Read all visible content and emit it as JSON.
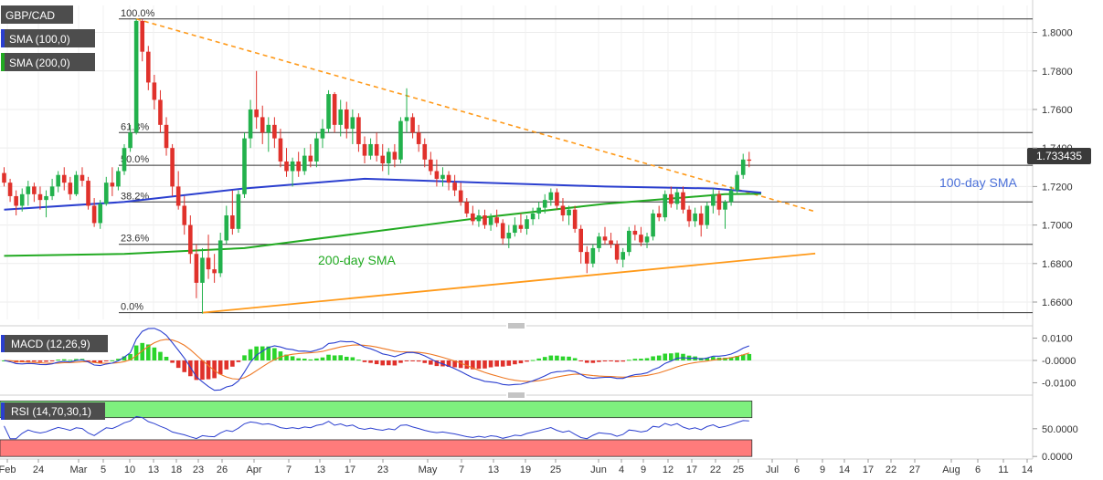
{
  "chart_data": {
    "type": "candlestick",
    "symbol": "GBP/CAD",
    "price_badge": "1.733435",
    "legend": [
      {
        "label": "GBP/CAD",
        "color": "#4d4d4d"
      },
      {
        "label": "SMA (100,0)",
        "color": "#2b3fcf"
      },
      {
        "label": "SMA (200,0)",
        "color": "#22aa22"
      }
    ],
    "price_axis": {
      "ticks": [
        "1.8000",
        "1.7800",
        "1.7600",
        "1.7400",
        "1.7200",
        "1.7000",
        "1.6800",
        "1.6600"
      ],
      "tick_values": [
        1.8,
        1.78,
        1.76,
        1.74,
        1.72,
        1.7,
        1.68,
        1.66
      ],
      "range": [
        1.651,
        1.814
      ]
    },
    "fibonacci": [
      {
        "label": "100.0%",
        "value": 1.807
      },
      {
        "label": "61.8%",
        "value": 1.748
      },
      {
        "label": "50.0%",
        "value": 1.731
      },
      {
        "label": "38.2%",
        "value": 1.712
      },
      {
        "label": "23.6%",
        "value": 1.69
      },
      {
        "label": "0.0%",
        "value": 1.6545
      }
    ],
    "annotations": [
      {
        "label": "100-day SMA",
        "color": "#4a6fd8"
      },
      {
        "label": "200-day SMA",
        "color": "#22aa22"
      }
    ],
    "x_axis": {
      "labels": [
        "Feb",
        "24",
        "Mar",
        "5",
        "10",
        "13",
        "18",
        "23",
        "26",
        "Apr",
        "7",
        "13",
        "17",
        "23",
        "May",
        "7",
        "13",
        "19",
        "25",
        "Jun",
        "4",
        "9",
        "12",
        "17",
        "22",
        "25",
        "Jul",
        "6",
        "9",
        "14",
        "17",
        "22",
        "27",
        "Aug",
        "6",
        "11",
        "14"
      ]
    },
    "candles": [
      {
        "o": 1.727,
        "h": 1.73,
        "l": 1.72,
        "c": 1.722
      },
      {
        "o": 1.722,
        "h": 1.724,
        "l": 1.712,
        "c": 1.715
      },
      {
        "o": 1.715,
        "h": 1.718,
        "l": 1.705,
        "c": 1.71
      },
      {
        "o": 1.71,
        "h": 1.719,
        "l": 1.707,
        "c": 1.716
      },
      {
        "o": 1.716,
        "h": 1.723,
        "l": 1.71,
        "c": 1.72
      },
      {
        "o": 1.72,
        "h": 1.722,
        "l": 1.712,
        "c": 1.716
      },
      {
        "o": 1.716,
        "h": 1.72,
        "l": 1.708,
        "c": 1.713
      },
      {
        "o": 1.713,
        "h": 1.718,
        "l": 1.704,
        "c": 1.715
      },
      {
        "o": 1.715,
        "h": 1.724,
        "l": 1.713,
        "c": 1.72
      },
      {
        "o": 1.72,
        "h": 1.728,
        "l": 1.717,
        "c": 1.726
      },
      {
        "o": 1.726,
        "h": 1.73,
        "l": 1.718,
        "c": 1.722
      },
      {
        "o": 1.722,
        "h": 1.725,
        "l": 1.713,
        "c": 1.716
      },
      {
        "o": 1.716,
        "h": 1.728,
        "l": 1.715,
        "c": 1.726
      },
      {
        "o": 1.726,
        "h": 1.73,
        "l": 1.72,
        "c": 1.723
      },
      {
        "o": 1.723,
        "h": 1.725,
        "l": 1.708,
        "c": 1.71
      },
      {
        "o": 1.71,
        "h": 1.714,
        "l": 1.699,
        "c": 1.701
      },
      {
        "o": 1.701,
        "h": 1.713,
        "l": 1.698,
        "c": 1.711
      },
      {
        "o": 1.711,
        "h": 1.725,
        "l": 1.71,
        "c": 1.722
      },
      {
        "o": 1.722,
        "h": 1.73,
        "l": 1.715,
        "c": 1.72
      },
      {
        "o": 1.72,
        "h": 1.73,
        "l": 1.718,
        "c": 1.728
      },
      {
        "o": 1.728,
        "h": 1.742,
        "l": 1.726,
        "c": 1.74
      },
      {
        "o": 1.74,
        "h": 1.752,
        "l": 1.738,
        "c": 1.748
      },
      {
        "o": 1.748,
        "h": 1.807,
        "l": 1.747,
        "c": 1.806
      },
      {
        "o": 1.806,
        "h": 1.807,
        "l": 1.785,
        "c": 1.79
      },
      {
        "o": 1.79,
        "h": 1.793,
        "l": 1.77,
        "c": 1.774
      },
      {
        "o": 1.774,
        "h": 1.778,
        "l": 1.76,
        "c": 1.765
      },
      {
        "o": 1.765,
        "h": 1.77,
        "l": 1.748,
        "c": 1.752
      },
      {
        "o": 1.752,
        "h": 1.756,
        "l": 1.736,
        "c": 1.74
      },
      {
        "o": 1.74,
        "h": 1.742,
        "l": 1.715,
        "c": 1.72
      },
      {
        "o": 1.72,
        "h": 1.728,
        "l": 1.708,
        "c": 1.71
      },
      {
        "o": 1.71,
        "h": 1.715,
        "l": 1.695,
        "c": 1.7
      },
      {
        "o": 1.7,
        "h": 1.705,
        "l": 1.68,
        "c": 1.685
      },
      {
        "o": 1.685,
        "h": 1.69,
        "l": 1.662,
        "c": 1.67
      },
      {
        "o": 1.67,
        "h": 1.688,
        "l": 1.654,
        "c": 1.683
      },
      {
        "o": 1.683,
        "h": 1.695,
        "l": 1.672,
        "c": 1.677
      },
      {
        "o": 1.677,
        "h": 1.685,
        "l": 1.67,
        "c": 1.675
      },
      {
        "o": 1.675,
        "h": 1.696,
        "l": 1.673,
        "c": 1.692
      },
      {
        "o": 1.692,
        "h": 1.71,
        "l": 1.69,
        "c": 1.705
      },
      {
        "o": 1.705,
        "h": 1.718,
        "l": 1.695,
        "c": 1.698
      },
      {
        "o": 1.698,
        "h": 1.718,
        "l": 1.696,
        "c": 1.716
      },
      {
        "o": 1.716,
        "h": 1.748,
        "l": 1.714,
        "c": 1.745
      },
      {
        "o": 1.745,
        "h": 1.765,
        "l": 1.74,
        "c": 1.76
      },
      {
        "o": 1.76,
        "h": 1.78,
        "l": 1.75,
        "c": 1.756
      },
      {
        "o": 1.756,
        "h": 1.762,
        "l": 1.742,
        "c": 1.748
      },
      {
        "o": 1.748,
        "h": 1.756,
        "l": 1.738,
        "c": 1.752
      },
      {
        "o": 1.752,
        "h": 1.756,
        "l": 1.74,
        "c": 1.745
      },
      {
        "o": 1.745,
        "h": 1.75,
        "l": 1.73,
        "c": 1.733
      },
      {
        "o": 1.733,
        "h": 1.74,
        "l": 1.725,
        "c": 1.728
      },
      {
        "o": 1.728,
        "h": 1.735,
        "l": 1.72,
        "c": 1.733
      },
      {
        "o": 1.733,
        "h": 1.738,
        "l": 1.725,
        "c": 1.728
      },
      {
        "o": 1.728,
        "h": 1.74,
        "l": 1.726,
        "c": 1.736
      },
      {
        "o": 1.736,
        "h": 1.742,
        "l": 1.73,
        "c": 1.733
      },
      {
        "o": 1.733,
        "h": 1.748,
        "l": 1.73,
        "c": 1.745
      },
      {
        "o": 1.745,
        "h": 1.755,
        "l": 1.74,
        "c": 1.75
      },
      {
        "o": 1.75,
        "h": 1.77,
        "l": 1.748,
        "c": 1.768
      },
      {
        "o": 1.768,
        "h": 1.769,
        "l": 1.748,
        "c": 1.752
      },
      {
        "o": 1.752,
        "h": 1.765,
        "l": 1.746,
        "c": 1.76
      },
      {
        "o": 1.76,
        "h": 1.764,
        "l": 1.745,
        "c": 1.75
      },
      {
        "o": 1.75,
        "h": 1.76,
        "l": 1.742,
        "c": 1.756
      },
      {
        "o": 1.756,
        "h": 1.758,
        "l": 1.738,
        "c": 1.742
      },
      {
        "o": 1.742,
        "h": 1.746,
        "l": 1.732,
        "c": 1.736
      },
      {
        "o": 1.736,
        "h": 1.745,
        "l": 1.734,
        "c": 1.742
      },
      {
        "o": 1.742,
        "h": 1.748,
        "l": 1.733,
        "c": 1.736
      },
      {
        "o": 1.736,
        "h": 1.742,
        "l": 1.728,
        "c": 1.732
      },
      {
        "o": 1.732,
        "h": 1.74,
        "l": 1.726,
        "c": 1.738
      },
      {
        "o": 1.738,
        "h": 1.742,
        "l": 1.73,
        "c": 1.734
      },
      {
        "o": 1.734,
        "h": 1.756,
        "l": 1.732,
        "c": 1.754
      },
      {
        "o": 1.754,
        "h": 1.771,
        "l": 1.748,
        "c": 1.756
      },
      {
        "o": 1.756,
        "h": 1.758,
        "l": 1.745,
        "c": 1.748
      },
      {
        "o": 1.748,
        "h": 1.752,
        "l": 1.738,
        "c": 1.742
      },
      {
        "o": 1.742,
        "h": 1.745,
        "l": 1.73,
        "c": 1.734
      },
      {
        "o": 1.734,
        "h": 1.738,
        "l": 1.726,
        "c": 1.728
      },
      {
        "o": 1.728,
        "h": 1.734,
        "l": 1.72,
        "c": 1.724
      },
      {
        "o": 1.724,
        "h": 1.73,
        "l": 1.72,
        "c": 1.726
      },
      {
        "o": 1.726,
        "h": 1.728,
        "l": 1.718,
        "c": 1.722
      },
      {
        "o": 1.722,
        "h": 1.726,
        "l": 1.715,
        "c": 1.718
      },
      {
        "o": 1.718,
        "h": 1.722,
        "l": 1.71,
        "c": 1.712
      },
      {
        "o": 1.712,
        "h": 1.714,
        "l": 1.704,
        "c": 1.706
      },
      {
        "o": 1.706,
        "h": 1.71,
        "l": 1.7,
        "c": 1.702
      },
      {
        "o": 1.702,
        "h": 1.708,
        "l": 1.699,
        "c": 1.705
      },
      {
        "o": 1.705,
        "h": 1.708,
        "l": 1.698,
        "c": 1.7
      },
      {
        "o": 1.7,
        "h": 1.706,
        "l": 1.697,
        "c": 1.704
      },
      {
        "o": 1.704,
        "h": 1.708,
        "l": 1.699,
        "c": 1.701
      },
      {
        "o": 1.701,
        "h": 1.703,
        "l": 1.69,
        "c": 1.693
      },
      {
        "o": 1.693,
        "h": 1.7,
        "l": 1.688,
        "c": 1.696
      },
      {
        "o": 1.696,
        "h": 1.704,
        "l": 1.694,
        "c": 1.7
      },
      {
        "o": 1.7,
        "h": 1.706,
        "l": 1.696,
        "c": 1.698
      },
      {
        "o": 1.698,
        "h": 1.705,
        "l": 1.695,
        "c": 1.703
      },
      {
        "o": 1.703,
        "h": 1.709,
        "l": 1.7,
        "c": 1.706
      },
      {
        "o": 1.706,
        "h": 1.712,
        "l": 1.703,
        "c": 1.709
      },
      {
        "o": 1.709,
        "h": 1.716,
        "l": 1.706,
        "c": 1.713
      },
      {
        "o": 1.713,
        "h": 1.719,
        "l": 1.71,
        "c": 1.717
      },
      {
        "o": 1.717,
        "h": 1.719,
        "l": 1.708,
        "c": 1.71
      },
      {
        "o": 1.71,
        "h": 1.714,
        "l": 1.702,
        "c": 1.705
      },
      {
        "o": 1.705,
        "h": 1.71,
        "l": 1.7,
        "c": 1.708
      },
      {
        "o": 1.708,
        "h": 1.71,
        "l": 1.696,
        "c": 1.698
      },
      {
        "o": 1.698,
        "h": 1.7,
        "l": 1.68,
        "c": 1.686
      },
      {
        "o": 1.686,
        "h": 1.689,
        "l": 1.675,
        "c": 1.68
      },
      {
        "o": 1.68,
        "h": 1.69,
        "l": 1.678,
        "c": 1.688
      },
      {
        "o": 1.688,
        "h": 1.696,
        "l": 1.686,
        "c": 1.694
      },
      {
        "o": 1.694,
        "h": 1.699,
        "l": 1.69,
        "c": 1.692
      },
      {
        "o": 1.692,
        "h": 1.696,
        "l": 1.688,
        "c": 1.69
      },
      {
        "o": 1.69,
        "h": 1.692,
        "l": 1.68,
        "c": 1.682
      },
      {
        "o": 1.682,
        "h": 1.688,
        "l": 1.678,
        "c": 1.686
      },
      {
        "o": 1.686,
        "h": 1.699,
        "l": 1.684,
        "c": 1.697
      },
      {
        "o": 1.697,
        "h": 1.7,
        "l": 1.692,
        "c": 1.695
      },
      {
        "o": 1.695,
        "h": 1.699,
        "l": 1.689,
        "c": 1.691
      },
      {
        "o": 1.691,
        "h": 1.696,
        "l": 1.688,
        "c": 1.694
      },
      {
        "o": 1.694,
        "h": 1.708,
        "l": 1.692,
        "c": 1.706
      },
      {
        "o": 1.706,
        "h": 1.71,
        "l": 1.702,
        "c": 1.704
      },
      {
        "o": 1.704,
        "h": 1.718,
        "l": 1.702,
        "c": 1.716
      },
      {
        "o": 1.716,
        "h": 1.72,
        "l": 1.709,
        "c": 1.711
      },
      {
        "o": 1.711,
        "h": 1.719,
        "l": 1.708,
        "c": 1.717
      },
      {
        "o": 1.717,
        "h": 1.72,
        "l": 1.706,
        "c": 1.708
      },
      {
        "o": 1.708,
        "h": 1.71,
        "l": 1.699,
        "c": 1.702
      },
      {
        "o": 1.702,
        "h": 1.709,
        "l": 1.699,
        "c": 1.706
      },
      {
        "o": 1.706,
        "h": 1.71,
        "l": 1.694,
        "c": 1.7
      },
      {
        "o": 1.7,
        "h": 1.712,
        "l": 1.698,
        "c": 1.71
      },
      {
        "o": 1.71,
        "h": 1.719,
        "l": 1.706,
        "c": 1.716
      },
      {
        "o": 1.716,
        "h": 1.718,
        "l": 1.705,
        "c": 1.708
      },
      {
        "o": 1.708,
        "h": 1.713,
        "l": 1.698,
        "c": 1.712
      },
      {
        "o": 1.712,
        "h": 1.72,
        "l": 1.71,
        "c": 1.718
      },
      {
        "o": 1.718,
        "h": 1.728,
        "l": 1.716,
        "c": 1.726
      },
      {
        "o": 1.726,
        "h": 1.737,
        "l": 1.724,
        "c": 1.734
      },
      {
        "o": 1.734,
        "h": 1.738,
        "l": 1.73,
        "c": 1.7334
      }
    ],
    "sma100": [
      [
        0,
        1.708
      ],
      [
        20,
        1.712
      ],
      [
        40,
        1.719
      ],
      [
        60,
        1.724
      ],
      [
        80,
        1.722
      ],
      [
        100,
        1.72
      ],
      [
        118,
        1.719
      ],
      [
        126,
        1.7168
      ]
    ],
    "sma200": [
      [
        0,
        1.684
      ],
      [
        20,
        1.685
      ],
      [
        40,
        1.688
      ],
      [
        60,
        1.696
      ],
      [
        80,
        1.704
      ],
      [
        100,
        1.711
      ],
      [
        120,
        1.716
      ],
      [
        126,
        1.7162
      ]
    ],
    "trend_resistance": [
      [
        22,
        1.807
      ],
      [
        135,
        1.707
      ]
    ],
    "trend_support": [
      [
        33,
        1.6545
      ],
      [
        135,
        1.6852
      ]
    ],
    "macd": {
      "label": "MACD (12,26,9)",
      "ticks": [
        "0.0100",
        "-0.0000",
        "-0.0100"
      ],
      "tick_values": [
        0.01,
        0.0,
        -0.01
      ],
      "range": [
        -0.0135,
        0.0135
      ]
    },
    "rsi": {
      "label": "RSI (14,70,30,1)",
      "ticks": [
        "50.0000",
        "0.0000"
      ],
      "tick_values": [
        50,
        0
      ],
      "range": [
        -3,
        104
      ],
      "overbought": 70,
      "oversold": 30
    }
  },
  "colors": {
    "bull": "#22b14c",
    "bear": "#e0312b",
    "sma100": "#2b3fcf",
    "sma200": "#22aa22",
    "trend_resistance": "#ff9a1a",
    "trend_support": "#ff9a1a",
    "macd_line": "#2b3fcf",
    "signal_line": "#ee7722",
    "rsi_line": "#2b3fcf",
    "rsi_ob_zone": "#7ef07e",
    "rsi_os_zone": "#ff7b7b",
    "badge_bg": "#3a3a3a"
  }
}
